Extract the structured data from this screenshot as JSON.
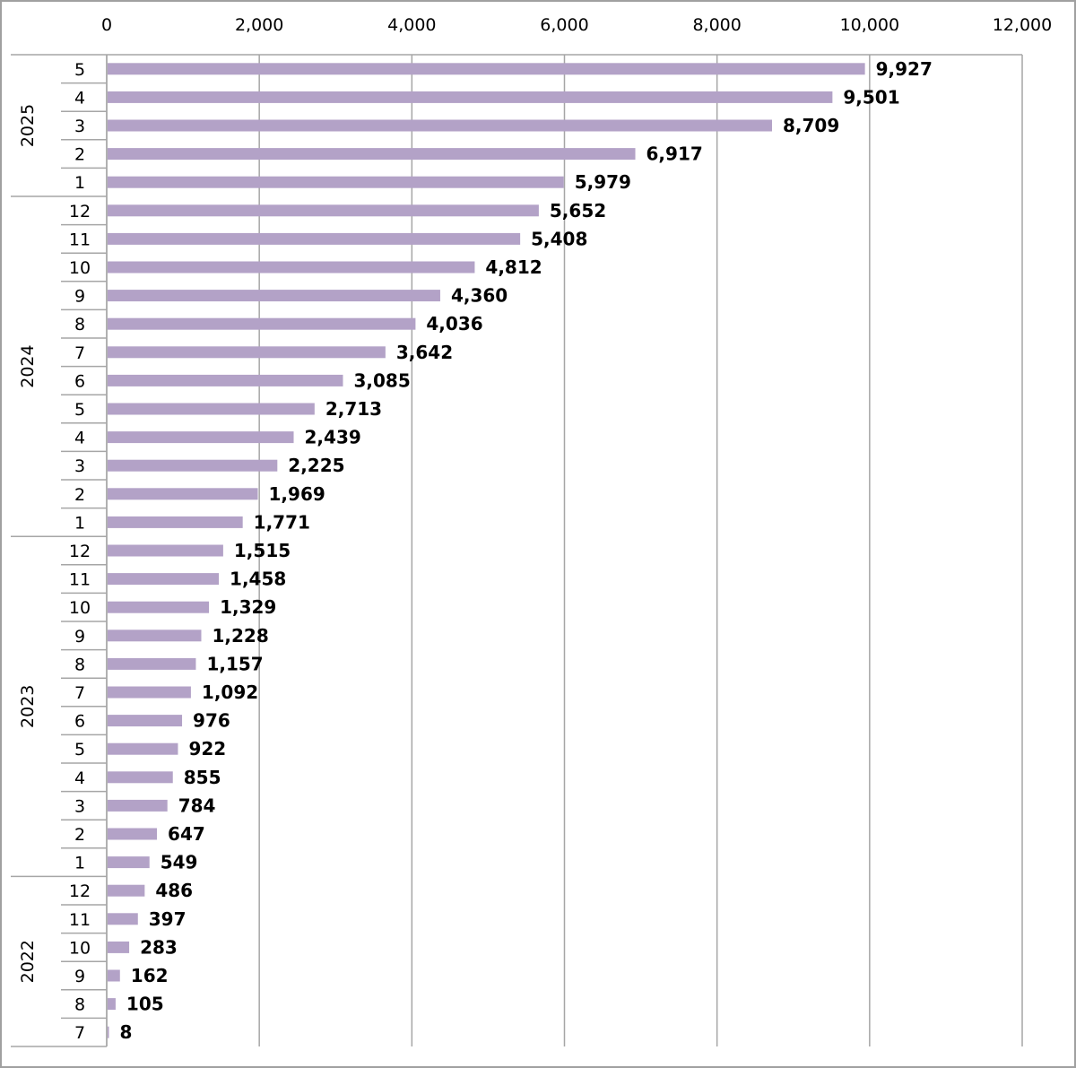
{
  "chart_data": {
    "type": "bar",
    "orientation": "horizontal",
    "title": "",
    "xlabel": "",
    "ylabel": "",
    "xlim": [
      0,
      12000
    ],
    "x_ticks": [
      "0",
      "2,000",
      "4,000",
      "6,000",
      "8,000",
      "10,000",
      "12,000"
    ],
    "x_tick_values": [
      0,
      2000,
      4000,
      6000,
      8000,
      10000,
      12000
    ],
    "grid": true,
    "bar_color": "#b3a2c7",
    "groups": [
      {
        "year": "2025",
        "months": [
          "5",
          "4",
          "3",
          "2",
          "1"
        ],
        "values": [
          9927,
          9501,
          8709,
          6917,
          5979
        ],
        "labels": [
          "9,927",
          "9,501",
          "8,709",
          "6,917",
          "5,979"
        ]
      },
      {
        "year": "2024",
        "months": [
          "12",
          "11",
          "10",
          "9",
          "8",
          "7",
          "6",
          "5",
          "4",
          "3",
          "2",
          "1"
        ],
        "values": [
          5652,
          5408,
          4812,
          4360,
          4036,
          3642,
          3085,
          2713,
          2439,
          2225,
          1969,
          1771
        ],
        "labels": [
          "5,652",
          "5,408",
          "4,812",
          "4,360",
          "4,036",
          "3,642",
          "3,085",
          "2,713",
          "2,439",
          "2,225",
          "1,969",
          "1,771"
        ]
      },
      {
        "year": "2023",
        "months": [
          "12",
          "11",
          "10",
          "9",
          "8",
          "7",
          "6",
          "5",
          "4",
          "3",
          "2",
          "1"
        ],
        "values": [
          1515,
          1458,
          1329,
          1228,
          1157,
          1092,
          976,
          922,
          855,
          784,
          647,
          549
        ],
        "labels": [
          "1,515",
          "1,458",
          "1,329",
          "1,228",
          "1,157",
          "1,092",
          "976",
          "922",
          "855",
          "784",
          "647",
          "549"
        ]
      },
      {
        "year": "2022",
        "months": [
          "12",
          "11",
          "10",
          "9",
          "8",
          "7"
        ],
        "values": [
          486,
          397,
          283,
          162,
          105,
          8
        ],
        "labels": [
          "486",
          "397",
          "283",
          "162",
          "105",
          "8"
        ]
      }
    ]
  }
}
